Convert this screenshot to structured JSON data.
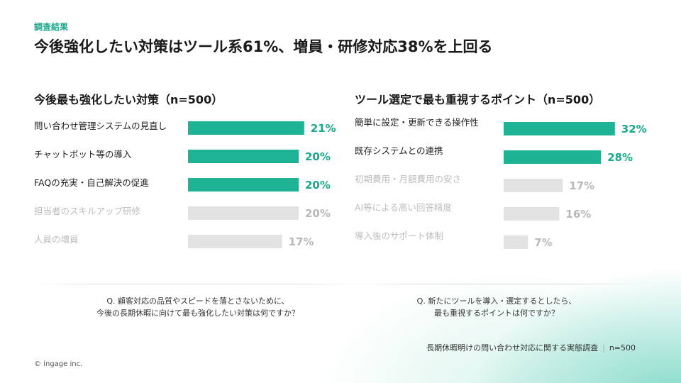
{
  "header": {
    "label": "調査結果",
    "headline": "今後強化したい対策はツール系61%、増員・研修対応38%を上回る"
  },
  "colors": {
    "highlight": "#1db394",
    "muted": "#e3e3e3",
    "highlight_text": "#1aa88c",
    "muted_text": "#b8b8b8",
    "label_text": "#1f1f1f",
    "muted_label_text": "#bdbdbd"
  },
  "chart_data": [
    {
      "type": "bar",
      "orientation": "horizontal",
      "title": "今後最も強化したい対策（n=500）",
      "categories": [
        "問い合わせ管理システムの見直し",
        "チャットボット等の導入",
        "FAQの充実・自己解決の促進",
        "担当者のスキルアップ研修",
        "人員の増員"
      ],
      "values": [
        21,
        20,
        20,
        20,
        17
      ],
      "value_labels": [
        "21%",
        "20%",
        "20%",
        "20%",
        "17%"
      ],
      "highlighted": [
        true,
        true,
        true,
        false,
        false
      ],
      "unit": "%"
    },
    {
      "type": "bar",
      "orientation": "horizontal",
      "title": "ツール選定で最も重視するポイント（n=500）",
      "categories": [
        "簡単に設定・更新できる操作性",
        "既存システムとの連携",
        "初期費用・月額費用の安さ",
        "AI等による高い回答精度",
        "導入後のサポート体制"
      ],
      "values": [
        32,
        28,
        17,
        16,
        7
      ],
      "value_labels": [
        "32%",
        "28%",
        "17%",
        "16%",
        "7%"
      ],
      "highlighted": [
        true,
        true,
        false,
        false,
        false
      ],
      "unit": "%"
    }
  ],
  "questions": {
    "left_line1": "Q. 顧客対応の品質やスピードを落とさないために、",
    "left_line2": "今後の長期休暇に向けて最も強化したい対策は何ですか？",
    "right_line1": "Q. 新たにツールを導入・選定するとしたら、",
    "right_line2": "最も重視するポイントは何ですか？"
  },
  "footer": {
    "source": "長期休暇明けの問い合わせ対応に関する実態調査",
    "separator": "|",
    "sample": "n=500",
    "copyright": "© ingage inc."
  }
}
